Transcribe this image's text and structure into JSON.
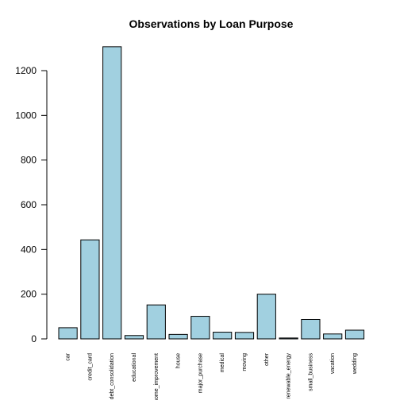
{
  "chart_data": {
    "type": "bar",
    "title": "Observations by Loan Purpose",
    "xlabel": "",
    "ylabel": "",
    "categories": [
      "car",
      "credit_card",
      "debt_consolidation",
      "educational",
      "home_improvement",
      "house",
      "major_purchase",
      "medical",
      "moving",
      "other",
      "renewable_energy",
      "small_business",
      "vacation",
      "wedding"
    ],
    "values": [
      50,
      443,
      1307,
      15,
      152,
      20,
      101,
      30,
      29,
      200,
      4,
      87,
      22,
      39
    ],
    "yticks": [
      0,
      200,
      400,
      600,
      800,
      1000,
      1200
    ],
    "ylim": [
      0,
      1320
    ],
    "bar_color": "#a1d0e0",
    "grid": false
  }
}
